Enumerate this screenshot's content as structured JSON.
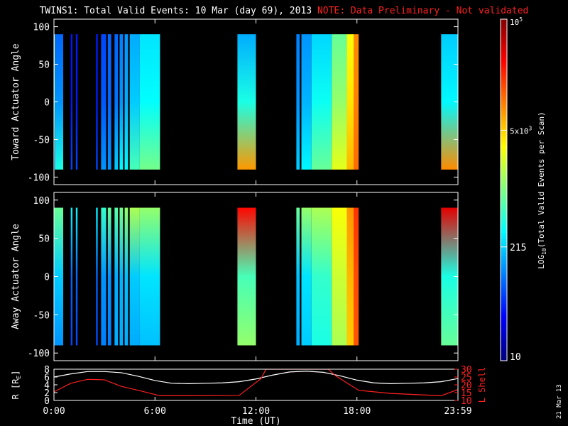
{
  "header": {
    "title": "TWINS1: Total Valid Events: 10 Mar (day  69), 2013",
    "note": "NOTE: Data Preliminary - Not validated",
    "note_color": "#ff2020"
  },
  "stamp": "21 Mar 13",
  "chart_data": [
    {
      "type": "heatmap",
      "ylabel": "Toward Actuator Angle",
      "ylim": [
        -110,
        110
      ],
      "yticks": [
        100,
        50,
        0,
        -50,
        -100
      ],
      "ytick_labels": [
        "100",
        "50",
        "0",
        "-50",
        "-100"
      ],
      "xlim": [
        0,
        24
      ],
      "angle_range": [
        -90,
        90
      ],
      "log_scale": true,
      "value_range": [
        10,
        100000
      ],
      "columns": [
        {
          "x": [
            0.0,
            0.05
          ],
          "bottom": 10,
          "top": 2000,
          "mid": 800
        },
        {
          "x": [
            0.05,
            0.55
          ],
          "bottom": 400,
          "top": 80,
          "mid": 120
        },
        {
          "x": [
            1.0,
            1.1
          ],
          "bottom": 60,
          "top": 40,
          "mid": 40
        },
        {
          "x": [
            1.3,
            1.4
          ],
          "bottom": 60,
          "top": 40,
          "mid": 40
        },
        {
          "x": [
            2.5,
            2.6
          ],
          "bottom": 60,
          "top": 40,
          "mid": 40
        },
        {
          "x": [
            2.8,
            3.1
          ],
          "bottom": 120,
          "top": 60,
          "mid": 70
        },
        {
          "x": [
            3.2,
            3.4
          ],
          "bottom": 120,
          "top": 80,
          "mid": 80
        },
        {
          "x": [
            3.6,
            3.8
          ],
          "bottom": 200,
          "top": 80,
          "mid": 90
        },
        {
          "x": [
            3.9,
            4.1
          ],
          "bottom": 300,
          "top": 100,
          "mid": 120
        },
        {
          "x": [
            4.2,
            4.4
          ],
          "bottom": 300,
          "top": 120,
          "mid": 150
        },
        {
          "x": [
            4.5,
            5.1
          ],
          "bottom": 600,
          "top": 150,
          "mid": 200
        },
        {
          "x": [
            5.1,
            6.3
          ],
          "bottom": 900,
          "top": 250,
          "mid": 320
        },
        {
          "x": [
            10.9,
            12.0
          ],
          "bottom": 8000,
          "top": 150,
          "mid": 400
        },
        {
          "x": [
            14.4,
            14.6
          ],
          "bottom": 200,
          "top": 100,
          "mid": 120
        },
        {
          "x": [
            14.7,
            15.3
          ],
          "bottom": 300,
          "top": 120,
          "mid": 160
        },
        {
          "x": [
            15.3,
            16.5
          ],
          "bottom": 800,
          "top": 220,
          "mid": 350
        },
        {
          "x": [
            16.5,
            17.4
          ],
          "bottom": 2500,
          "top": 800,
          "mid": 1200
        },
        {
          "x": [
            17.4,
            17.8
          ],
          "bottom": 6000,
          "top": 3000,
          "mid": 4000
        },
        {
          "x": [
            17.8,
            18.1
          ],
          "bottom": 12000,
          "top": 9000,
          "mid": 10000
        },
        {
          "x": [
            23.0,
            24.0
          ],
          "bottom": 9000,
          "top": 200,
          "mid": 300
        }
      ]
    },
    {
      "type": "heatmap",
      "ylabel": "Away Actuator Angle",
      "ylim": [
        -110,
        110
      ],
      "yticks": [
        100,
        50,
        0,
        -50,
        -100
      ],
      "ytick_labels": [
        "100",
        "50",
        "0",
        "-50",
        "-100"
      ],
      "xlim": [
        0,
        24
      ],
      "angle_range": [
        -90,
        90
      ],
      "log_scale": true,
      "value_range": [
        10,
        100000
      ],
      "columns": [
        {
          "x": [
            0.0,
            0.55
          ],
          "bottom": 120,
          "top": 800,
          "mid": 200
        },
        {
          "x": [
            1.0,
            1.1
          ],
          "bottom": 60,
          "top": 300,
          "mid": 80
        },
        {
          "x": [
            1.3,
            1.4
          ],
          "bottom": 60,
          "top": 300,
          "mid": 80
        },
        {
          "x": [
            2.5,
            2.6
          ],
          "bottom": 60,
          "top": 300,
          "mid": 80
        },
        {
          "x": [
            2.8,
            3.1
          ],
          "bottom": 100,
          "top": 500,
          "mid": 120
        },
        {
          "x": [
            3.2,
            3.4
          ],
          "bottom": 100,
          "top": 800,
          "mid": 120
        },
        {
          "x": [
            3.6,
            3.8
          ],
          "bottom": 150,
          "top": 700,
          "mid": 150
        },
        {
          "x": [
            3.9,
            4.1
          ],
          "bottom": 150,
          "top": 900,
          "mid": 160
        },
        {
          "x": [
            4.2,
            4.4
          ],
          "bottom": 150,
          "top": 1200,
          "mid": 180
        },
        {
          "x": [
            4.5,
            5.1
          ],
          "bottom": 150,
          "top": 1500,
          "mid": 200
        },
        {
          "x": [
            5.1,
            6.3
          ],
          "bottom": 180,
          "top": 1200,
          "mid": 250
        },
        {
          "x": [
            10.9,
            12.0
          ],
          "bottom": 1200,
          "top": 30000,
          "mid": 600
        },
        {
          "x": [
            14.4,
            14.6
          ],
          "bottom": 150,
          "top": 800,
          "mid": 180
        },
        {
          "x": [
            14.7,
            15.3
          ],
          "bottom": 200,
          "top": 1200,
          "mid": 250
        },
        {
          "x": [
            15.3,
            16.5
          ],
          "bottom": 400,
          "top": 1500,
          "mid": 500
        },
        {
          "x": [
            16.5,
            17.4
          ],
          "bottom": 1500,
          "top": 3000,
          "mid": 2000
        },
        {
          "x": [
            17.4,
            17.8
          ],
          "bottom": 5000,
          "top": 8000,
          "mid": 6000
        },
        {
          "x": [
            17.8,
            18.1
          ],
          "bottom": 15000,
          "top": 20000,
          "mid": 16000
        },
        {
          "x": [
            23.0,
            24.0
          ],
          "bottom": 800,
          "top": 40000,
          "mid": 400
        }
      ]
    },
    {
      "type": "line",
      "xlabel": "Time (UT)",
      "ylabel": "R [R",
      "ylabel_sub": "E",
      "ylabel_close": "]",
      "xlim": [
        0,
        24
      ],
      "ylim": [
        0,
        8
      ],
      "yticks": [
        0,
        2,
        4,
        6,
        8
      ],
      "ytick_labels": [
        "0",
        "2",
        "4",
        "6",
        "8"
      ],
      "xticks": [
        0,
        6,
        12,
        18,
        24
      ],
      "xtick_labels": [
        "0:00",
        "6:00",
        "12:00",
        "18:00",
        "23:59"
      ],
      "right_axis": {
        "label": "L Shell",
        "color": "#ff2020",
        "ylim": [
          10,
          30
        ],
        "yticks": [
          10,
          15,
          20,
          25,
          30
        ],
        "ytick_labels": [
          "10",
          "15",
          "20",
          "25",
          "30"
        ]
      },
      "series": [
        {
          "color": "#ffffff",
          "axis": "left",
          "x": [
            0,
            1,
            2,
            3,
            4,
            5,
            6,
            7,
            8,
            9,
            10,
            11,
            12,
            13,
            14,
            15,
            16,
            17,
            18,
            19,
            20,
            21,
            22,
            23,
            24
          ],
          "y": [
            6.0,
            6.8,
            7.4,
            7.4,
            7.1,
            6.2,
            5.1,
            4.4,
            4.3,
            4.4,
            4.5,
            4.8,
            5.5,
            6.5,
            7.3,
            7.5,
            7.2,
            6.3,
            5.2,
            4.5,
            4.3,
            4.4,
            4.5,
            4.8,
            5.6
          ]
        },
        {
          "color": "#ff2020",
          "axis": "right",
          "x": [
            0,
            1,
            2,
            3,
            4,
            5,
            6.3,
            8,
            11,
            12.3,
            12.6,
            16.3,
            16.7,
            18.1,
            20,
            23,
            24
          ],
          "y": [
            15.5,
            21,
            23.5,
            23.2,
            19,
            16.5,
            13,
            13,
            13.2,
            24,
            30,
            30,
            26,
            16.5,
            14.5,
            13,
            17
          ]
        }
      ]
    }
  ],
  "colorbar": {
    "label": "LOG",
    "label_sub": "10",
    "label_rest": "(Total Valid Events per Scan)",
    "min_label": "10",
    "label_215": "215",
    "label_5e3_base": "5x10",
    "label_5e3_exp": "3",
    "max_label_base": "10",
    "max_label_exp": "5"
  }
}
